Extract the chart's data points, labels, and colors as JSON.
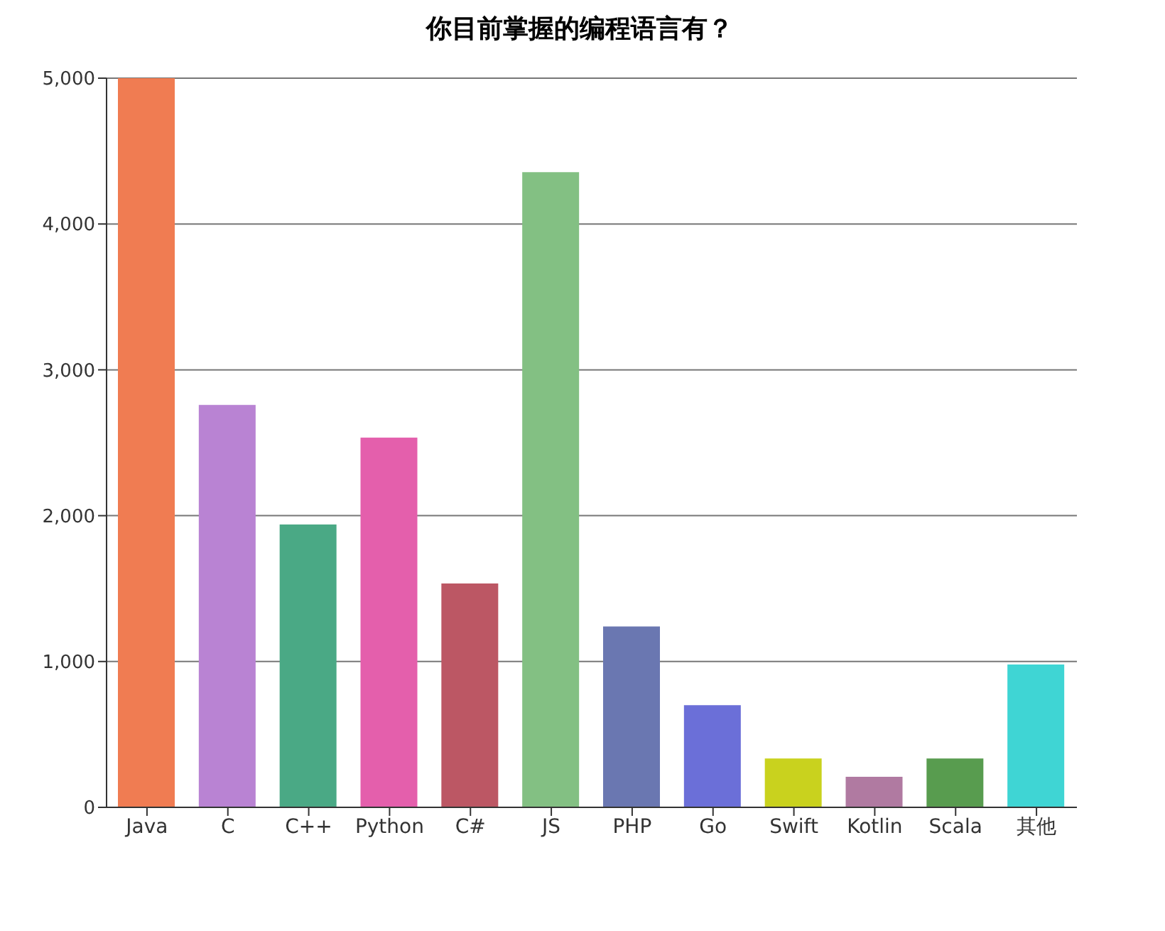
{
  "chart_data": {
    "type": "bar",
    "title": "你目前掌握的编程语言有？",
    "categories": [
      "Java",
      "C",
      "C++",
      "Python",
      "C#",
      "JS",
      "PHP",
      "Go",
      "Swift",
      "Kotlin",
      "Scala",
      "其他"
    ],
    "values": [
      5000,
      2760,
      1940,
      2535,
      1535,
      4355,
      1240,
      700,
      335,
      210,
      335,
      980
    ],
    "colors": [
      "#f07c52",
      "#b983d3",
      "#4aa985",
      "#e45fac",
      "#bc5764",
      "#83c083",
      "#6a77b1",
      "#6b6fd8",
      "#c9d21e",
      "#b07aa1",
      "#589c4f",
      "#3fd5d4"
    ],
    "ylim": [
      0,
      5000
    ],
    "yticks": [
      0,
      {
        "value": 1000,
        "label": "1,000"
      },
      {
        "value": 2000,
        "label": "2,000"
      },
      {
        "value": 3000,
        "label": "3,000"
      },
      {
        "value": 4000,
        "label": "4,000"
      },
      {
        "value": 5000,
        "label": "5,000"
      }
    ],
    "grid": "y"
  }
}
